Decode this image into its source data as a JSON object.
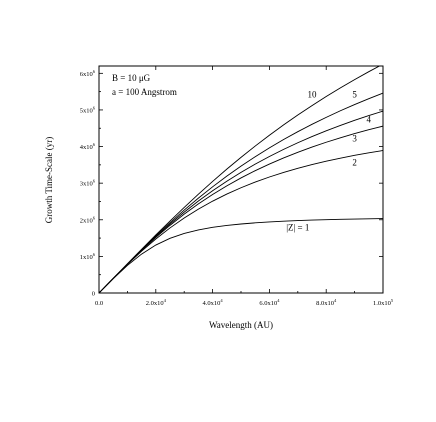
{
  "chart_data": {
    "type": "line",
    "title": "",
    "xlabel": "Wavelength (AU)",
    "ylabel": "Growth Time-Scale (yr)",
    "xlim": [
      0,
      100000
    ],
    "ylim": [
      0,
      6200000
    ],
    "x_ticks": [
      0,
      20000,
      40000,
      60000,
      80000,
      100000
    ],
    "x_tick_labels": [
      {
        "mantissa": "0.0",
        "exp": ""
      },
      {
        "mantissa": "2.0x10",
        "exp": "4"
      },
      {
        "mantissa": "4.0x10",
        "exp": "4"
      },
      {
        "mantissa": "6.0x10",
        "exp": "4"
      },
      {
        "mantissa": "8.0x10",
        "exp": "4"
      },
      {
        "mantissa": "1.0x10",
        "exp": "5"
      }
    ],
    "y_ticks": [
      0,
      1000000,
      2000000,
      3000000,
      4000000,
      5000000,
      6000000
    ],
    "y_tick_labels": [
      {
        "mantissa": "0",
        "exp": ""
      },
      {
        "mantissa": "1x10",
        "exp": "6"
      },
      {
        "mantissa": "2x10",
        "exp": "6"
      },
      {
        "mantissa": "3x10",
        "exp": "6"
      },
      {
        "mantissa": "4x10",
        "exp": "6"
      },
      {
        "mantissa": "5x10",
        "exp": "6"
      },
      {
        "mantissa": "6x10",
        "exp": "6"
      }
    ],
    "annotations": [
      {
        "mu": "B = 10 ",
        "greek": "μ",
        "rest": "G"
      },
      {
        "text": "a = 100 Angstrom"
      }
    ],
    "x": [
      0,
      5000,
      10000,
      15000,
      20000,
      25000,
      30000,
      35000,
      40000,
      45000,
      50000,
      55000,
      60000,
      65000,
      70000,
      75000,
      80000,
      85000,
      90000,
      95000,
      100000
    ],
    "series": [
      {
        "name": "|Z| = 1",
        "values": [
          0,
          391600,
          752800,
          1063500,
          1309700,
          1494000,
          1627500,
          1723500,
          1793400,
          1845000,
          1884600,
          1915800,
          1940600,
          1960700,
          1977200,
          1990800,
          2002000,
          2011600,
          2019700,
          2026500,
          2032500
        ]
      },
      {
        "name": "2",
        "values": [
          0,
          396500,
          780500,
          1141900,
          1475000,
          1777300,
          2049000,
          2291700,
          2508400,
          2701700,
          2874500,
          3029400,
          3168300,
          3293300,
          3406000,
          3507800,
          3599900,
          3683600,
          3759700,
          3829100,
          3892500
        ]
      },
      {
        "name": "3",
        "values": [
          0,
          397800,
          788000,
          1163200,
          1517600,
          1848000,
          2153400,
          2433900,
          2691200,
          2926700,
          3142500,
          3340300,
          3522000,
          3689300,
          3843500,
          3986000,
          4117800,
          4240100,
          4353700,
          4459400,
          4558000
        ]
      },
      {
        "name": "4",
        "values": [
          0,
          398400,
          791500,
          1173400,
          1539000,
          1884900,
          2209300,
          2511900,
          2792800,
          3053500,
          3295300,
          3519800,
          3728300,
          3922400,
          4103200,
          4271900,
          4429500,
          4577000,
          4715200,
          4844900,
          4966800
        ]
      },
      {
        "name": "5",
        "values": [
          0,
          398900,
          794700,
          1182900,
          1559100,
          1920500,
          2265100,
          2591800,
          2900500,
          3191400,
          3464900,
          3722200,
          3964000,
          4191500,
          4405500,
          4607200,
          4797400,
          4977100,
          5147100,
          5308000,
          5460700
        ]
      },
      {
        "name": "10",
        "values": [
          0,
          399500,
          798300,
          1194100,
          1584200,
          1966200,
          2338300,
          2699100,
          3047400,
          3382900,
          3704800,
          4013400,
          4308700,
          4591200,
          4861200,
          5119300,
          5366000,
          5602000,
          5827900,
          6044400,
          6252000
        ]
      }
    ]
  }
}
